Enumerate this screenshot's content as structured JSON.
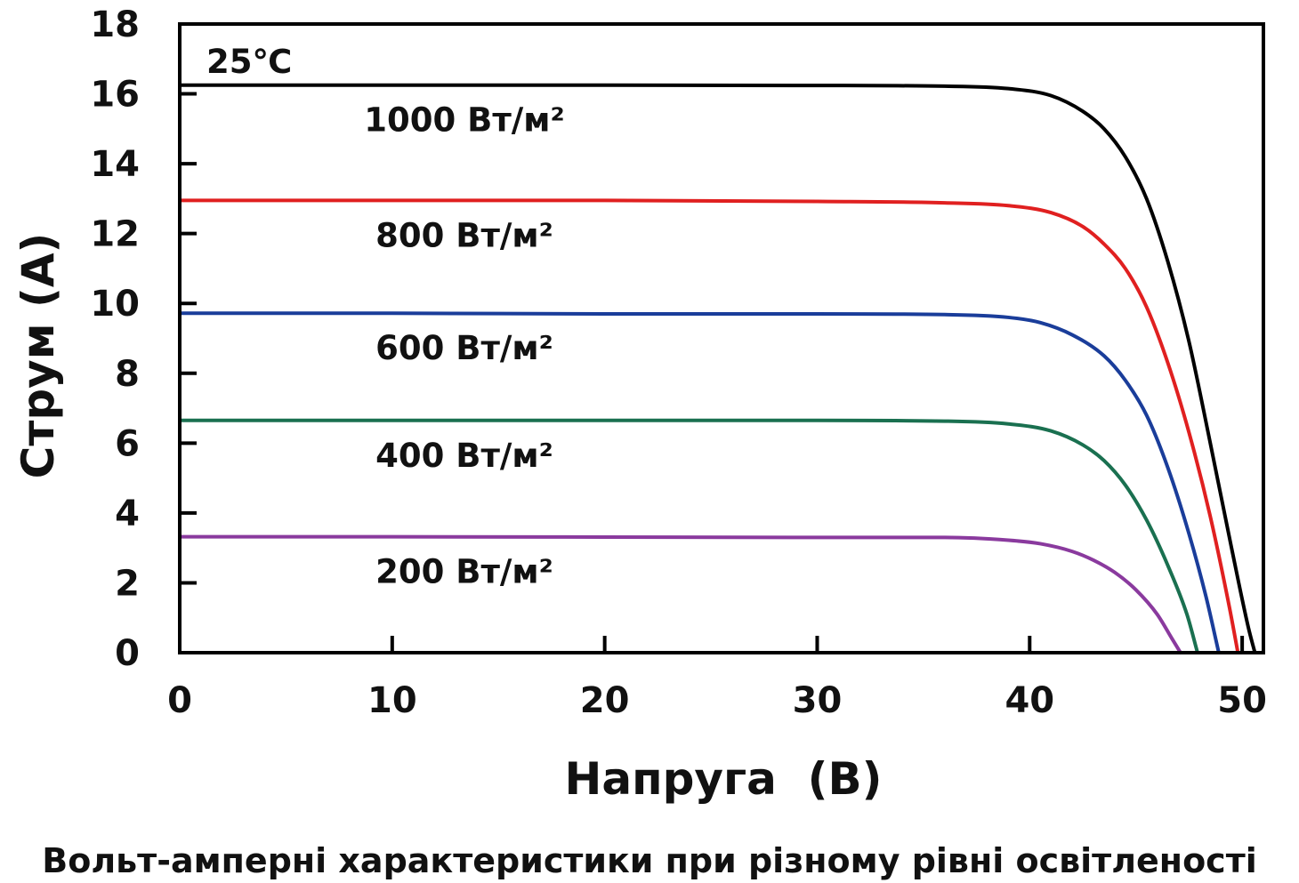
{
  "chart_data": {
    "type": "line",
    "caption": "Вольт-амперні характеристики при різному рівні освітленості",
    "xlabel": "Напруга  (В)",
    "ylabel": "Струм (А)",
    "annotation": "25℃",
    "xlim": [
      0,
      51
    ],
    "ylim": [
      0,
      18
    ],
    "xticks": [
      0,
      10,
      20,
      30,
      40,
      50
    ],
    "yticks": [
      0,
      2,
      4,
      6,
      8,
      10,
      12,
      14,
      16,
      18
    ],
    "grid": false,
    "series": [
      {
        "label": "1000 Вт/м²",
        "color": "#000000",
        "points": [
          [
            0,
            16.25
          ],
          [
            10,
            16.25
          ],
          [
            20,
            16.25
          ],
          [
            30,
            16.24
          ],
          [
            36,
            16.22
          ],
          [
            39,
            16.15
          ],
          [
            41,
            15.95
          ],
          [
            42.5,
            15.5
          ],
          [
            43.5,
            15.0
          ],
          [
            44.5,
            14.2
          ],
          [
            45.5,
            13.0
          ],
          [
            46.5,
            11.2
          ],
          [
            47.5,
            8.9
          ],
          [
            48.5,
            6.0
          ],
          [
            49.5,
            3.0
          ],
          [
            50.3,
            0.7
          ],
          [
            50.6,
            0
          ]
        ]
      },
      {
        "label": "800 Вт/м²",
        "color": "#e02020",
        "points": [
          [
            0,
            12.95
          ],
          [
            10,
            12.95
          ],
          [
            20,
            12.95
          ],
          [
            30,
            12.92
          ],
          [
            36,
            12.88
          ],
          [
            39,
            12.8
          ],
          [
            41,
            12.6
          ],
          [
            42.5,
            12.2
          ],
          [
            43.5,
            11.7
          ],
          [
            44.5,
            11.0
          ],
          [
            45.5,
            9.9
          ],
          [
            46.5,
            8.3
          ],
          [
            47.5,
            6.3
          ],
          [
            48.5,
            3.9
          ],
          [
            49.4,
            1.3
          ],
          [
            49.8,
            0
          ]
        ]
      },
      {
        "label": "600 Вт/м²",
        "color": "#1a3d9a",
        "points": [
          [
            0,
            9.72
          ],
          [
            10,
            9.72
          ],
          [
            20,
            9.7
          ],
          [
            30,
            9.7
          ],
          [
            36,
            9.68
          ],
          [
            39,
            9.6
          ],
          [
            40.5,
            9.45
          ],
          [
            42,
            9.1
          ],
          [
            43.5,
            8.5
          ],
          [
            44.5,
            7.8
          ],
          [
            45.5,
            6.8
          ],
          [
            46.5,
            5.3
          ],
          [
            47.5,
            3.4
          ],
          [
            48.3,
            1.6
          ],
          [
            48.9,
            0
          ]
        ]
      },
      {
        "label": "400 Вт/м²",
        "color": "#1a7050",
        "points": [
          [
            0,
            6.65
          ],
          [
            10,
            6.65
          ],
          [
            20,
            6.65
          ],
          [
            30,
            6.65
          ],
          [
            36,
            6.63
          ],
          [
            39,
            6.55
          ],
          [
            41,
            6.35
          ],
          [
            42.5,
            5.95
          ],
          [
            43.5,
            5.5
          ],
          [
            44.5,
            4.8
          ],
          [
            45.5,
            3.8
          ],
          [
            46.5,
            2.5
          ],
          [
            47.4,
            1.1
          ],
          [
            47.9,
            0
          ]
        ]
      },
      {
        "label": "200 Вт/м²",
        "color": "#8a3a9e",
        "points": [
          [
            0,
            3.32
          ],
          [
            10,
            3.32
          ],
          [
            20,
            3.31
          ],
          [
            30,
            3.3
          ],
          [
            36,
            3.3
          ],
          [
            39,
            3.22
          ],
          [
            40.5,
            3.12
          ],
          [
            42,
            2.9
          ],
          [
            43,
            2.65
          ],
          [
            44,
            2.3
          ],
          [
            45,
            1.8
          ],
          [
            46,
            1.1
          ],
          [
            46.7,
            0.4
          ],
          [
            47.1,
            0
          ]
        ]
      }
    ]
  }
}
